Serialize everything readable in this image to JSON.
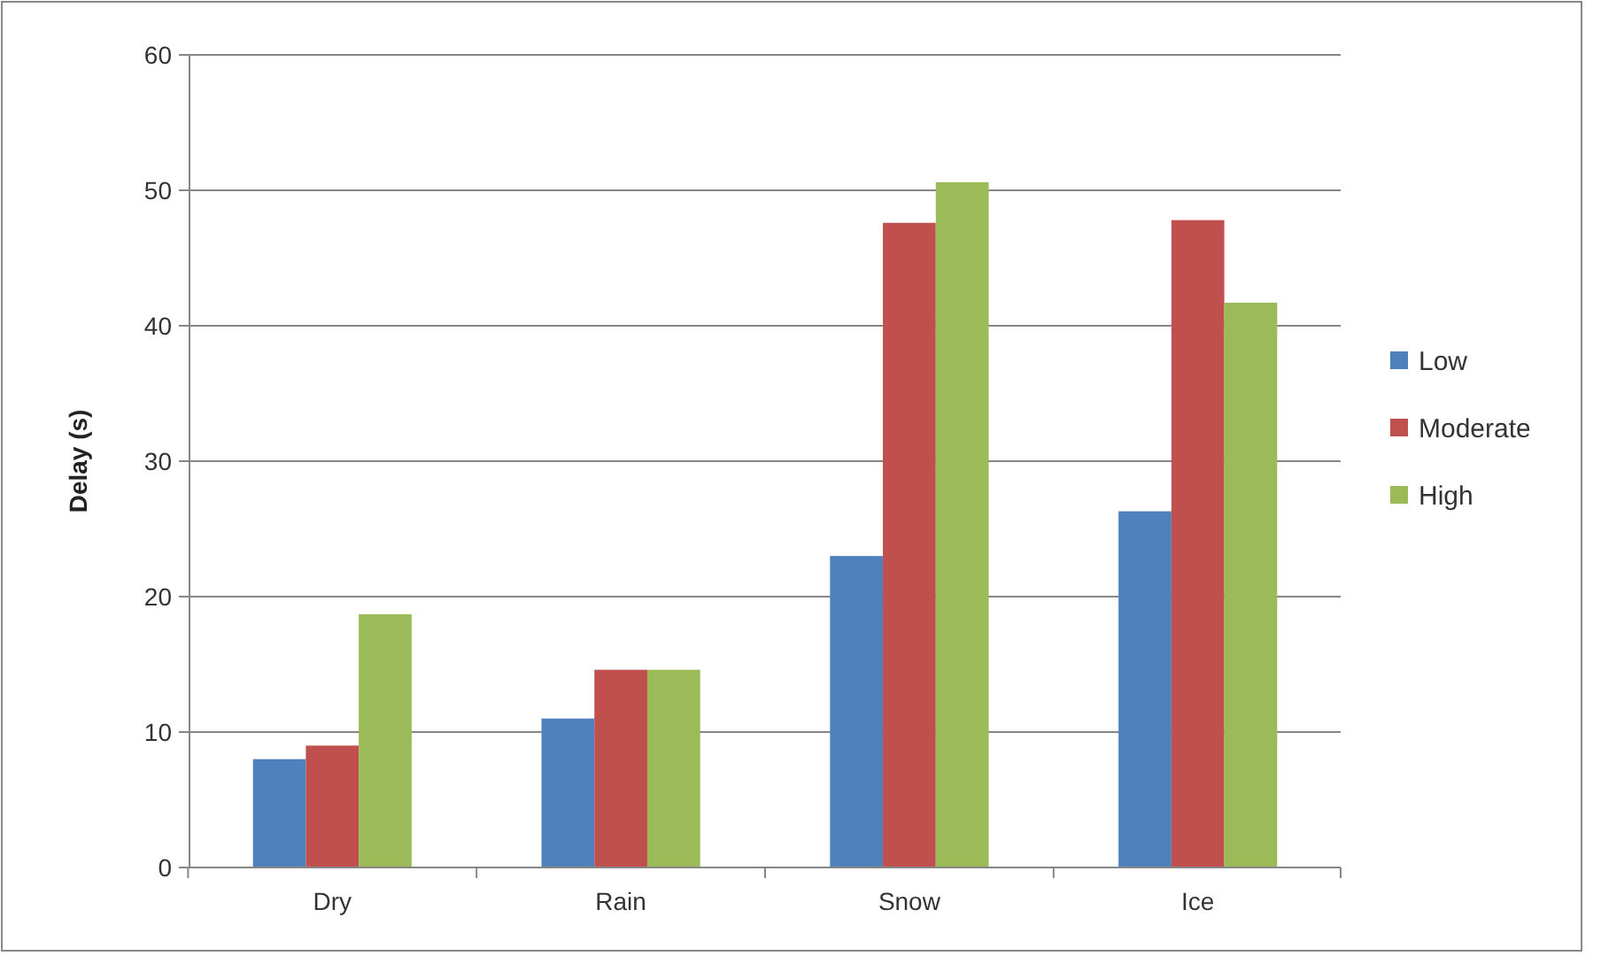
{
  "chart_data": {
    "type": "bar",
    "ylabel": "Delay (s)",
    "categories": [
      "Dry",
      "Rain",
      "Snow",
      "Ice"
    ],
    "series": [
      {
        "name": "Low",
        "color": "#4f81bd",
        "values": [
          8,
          11,
          23,
          26.3
        ]
      },
      {
        "name": "Moderate",
        "color": "#c0504d",
        "values": [
          9,
          14.6,
          47.6,
          47.8
        ]
      },
      {
        "name": "High",
        "color": "#9bbb59",
        "values": [
          18.7,
          14.6,
          50.6,
          41.7
        ]
      }
    ],
    "ylim": [
      0,
      60
    ],
    "yticks": [
      0,
      10,
      20,
      30,
      40,
      50,
      60
    ],
    "grid": "y",
    "legend": "right"
  }
}
